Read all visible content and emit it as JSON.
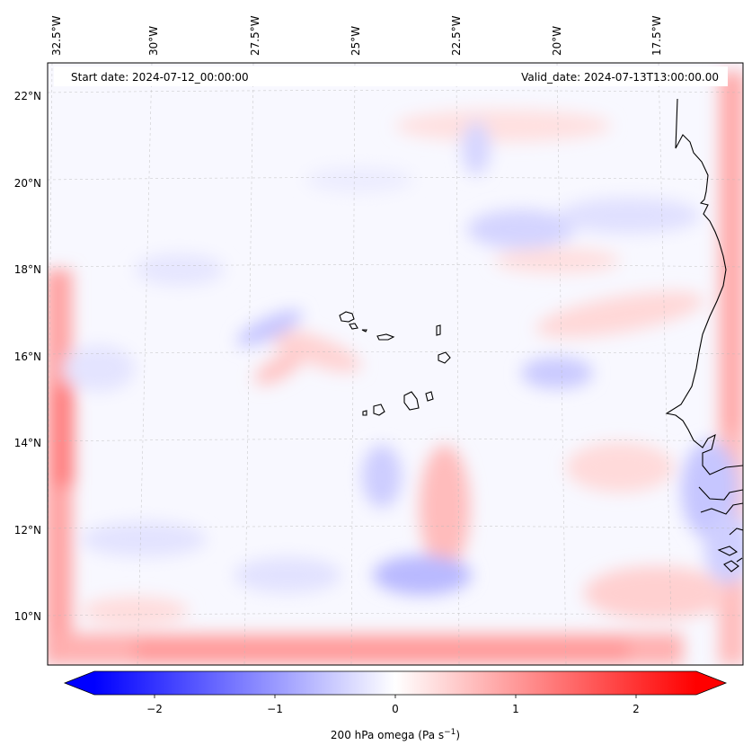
{
  "map": {
    "start_date_text": "Start date: 2024-07-12_00:00:00",
    "valid_date_text": "Valid_date: 2024-07-13T13:00:00.00",
    "variable": "200 hPa omega",
    "lon_labels": [
      "32.5°W",
      "30°W",
      "27.5°W",
      "25°W",
      "22.5°W",
      "20°W",
      "17.5°W"
    ],
    "lat_labels": [
      "22°N",
      "20°N",
      "18°N",
      "16°N",
      "14°N",
      "12°N",
      "10°N"
    ],
    "extent": {
      "lon_min": -32.6,
      "lon_max": -15.5,
      "lat_min": 8.8,
      "lat_max": 22.8
    }
  },
  "colorbar": {
    "label_main": "200 hPa omega (Pa s",
    "label_sup": "−1",
    "label_end": ")",
    "ticks": [
      "−2",
      "−1",
      "0",
      "1",
      "2"
    ],
    "tick_values": [
      -2,
      -1,
      0,
      1,
      2
    ],
    "vmin": -2.5,
    "vmax": 2.5,
    "cmap": "bwr",
    "extend": "both",
    "color_low": "#0000ff",
    "color_mid": "#ffffff",
    "color_high": "#ff0000"
  }
}
